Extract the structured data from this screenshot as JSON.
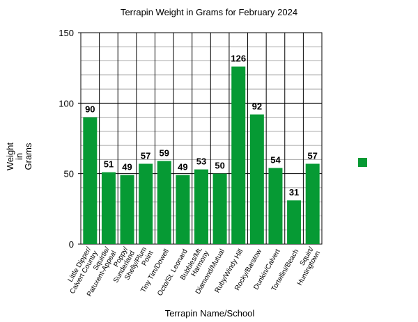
{
  "chart_data": {
    "type": "bar",
    "title": "Terrapin Weight in Grams for February 2024",
    "xlabel": "Terrapin Name/School",
    "ylabel": [
      "Weight",
      "in",
      "Grams"
    ],
    "ylim": [
      0,
      150
    ],
    "major_ticks": [
      0,
      50,
      100,
      150
    ],
    "minor_tick_step": 10,
    "grid": true,
    "bar_color": "#069a34",
    "categories": [
      [
        "Little Dipper/",
        "Calvert Country"
      ],
      [
        "Squirtle/",
        "Patuxent-Appeal"
      ],
      [
        "Poppy/",
        "Sunderland"
      ],
      [
        "Shelly/Plum",
        "Point"
      ],
      [
        "Tiny Tim/Dowell"
      ],
      [
        "Octo/St. Leonard"
      ],
      [
        "Bubbles/Mt.",
        "Harmony"
      ],
      [
        "Diamond/Mutual"
      ],
      [
        "Ruby/Windy Hill"
      ],
      [
        "Rocky/Barstow"
      ],
      [
        "Dunkin/Calvert"
      ],
      [
        "Tortellini/Beach"
      ],
      [
        "Squirt/",
        "Huntingtown"
      ]
    ],
    "values": [
      90,
      51,
      49,
      57,
      59,
      49,
      53,
      50,
      126,
      92,
      54,
      31,
      57
    ],
    "legend": {
      "placement": "right",
      "swatch_color": "#069a34",
      "label": ""
    }
  }
}
